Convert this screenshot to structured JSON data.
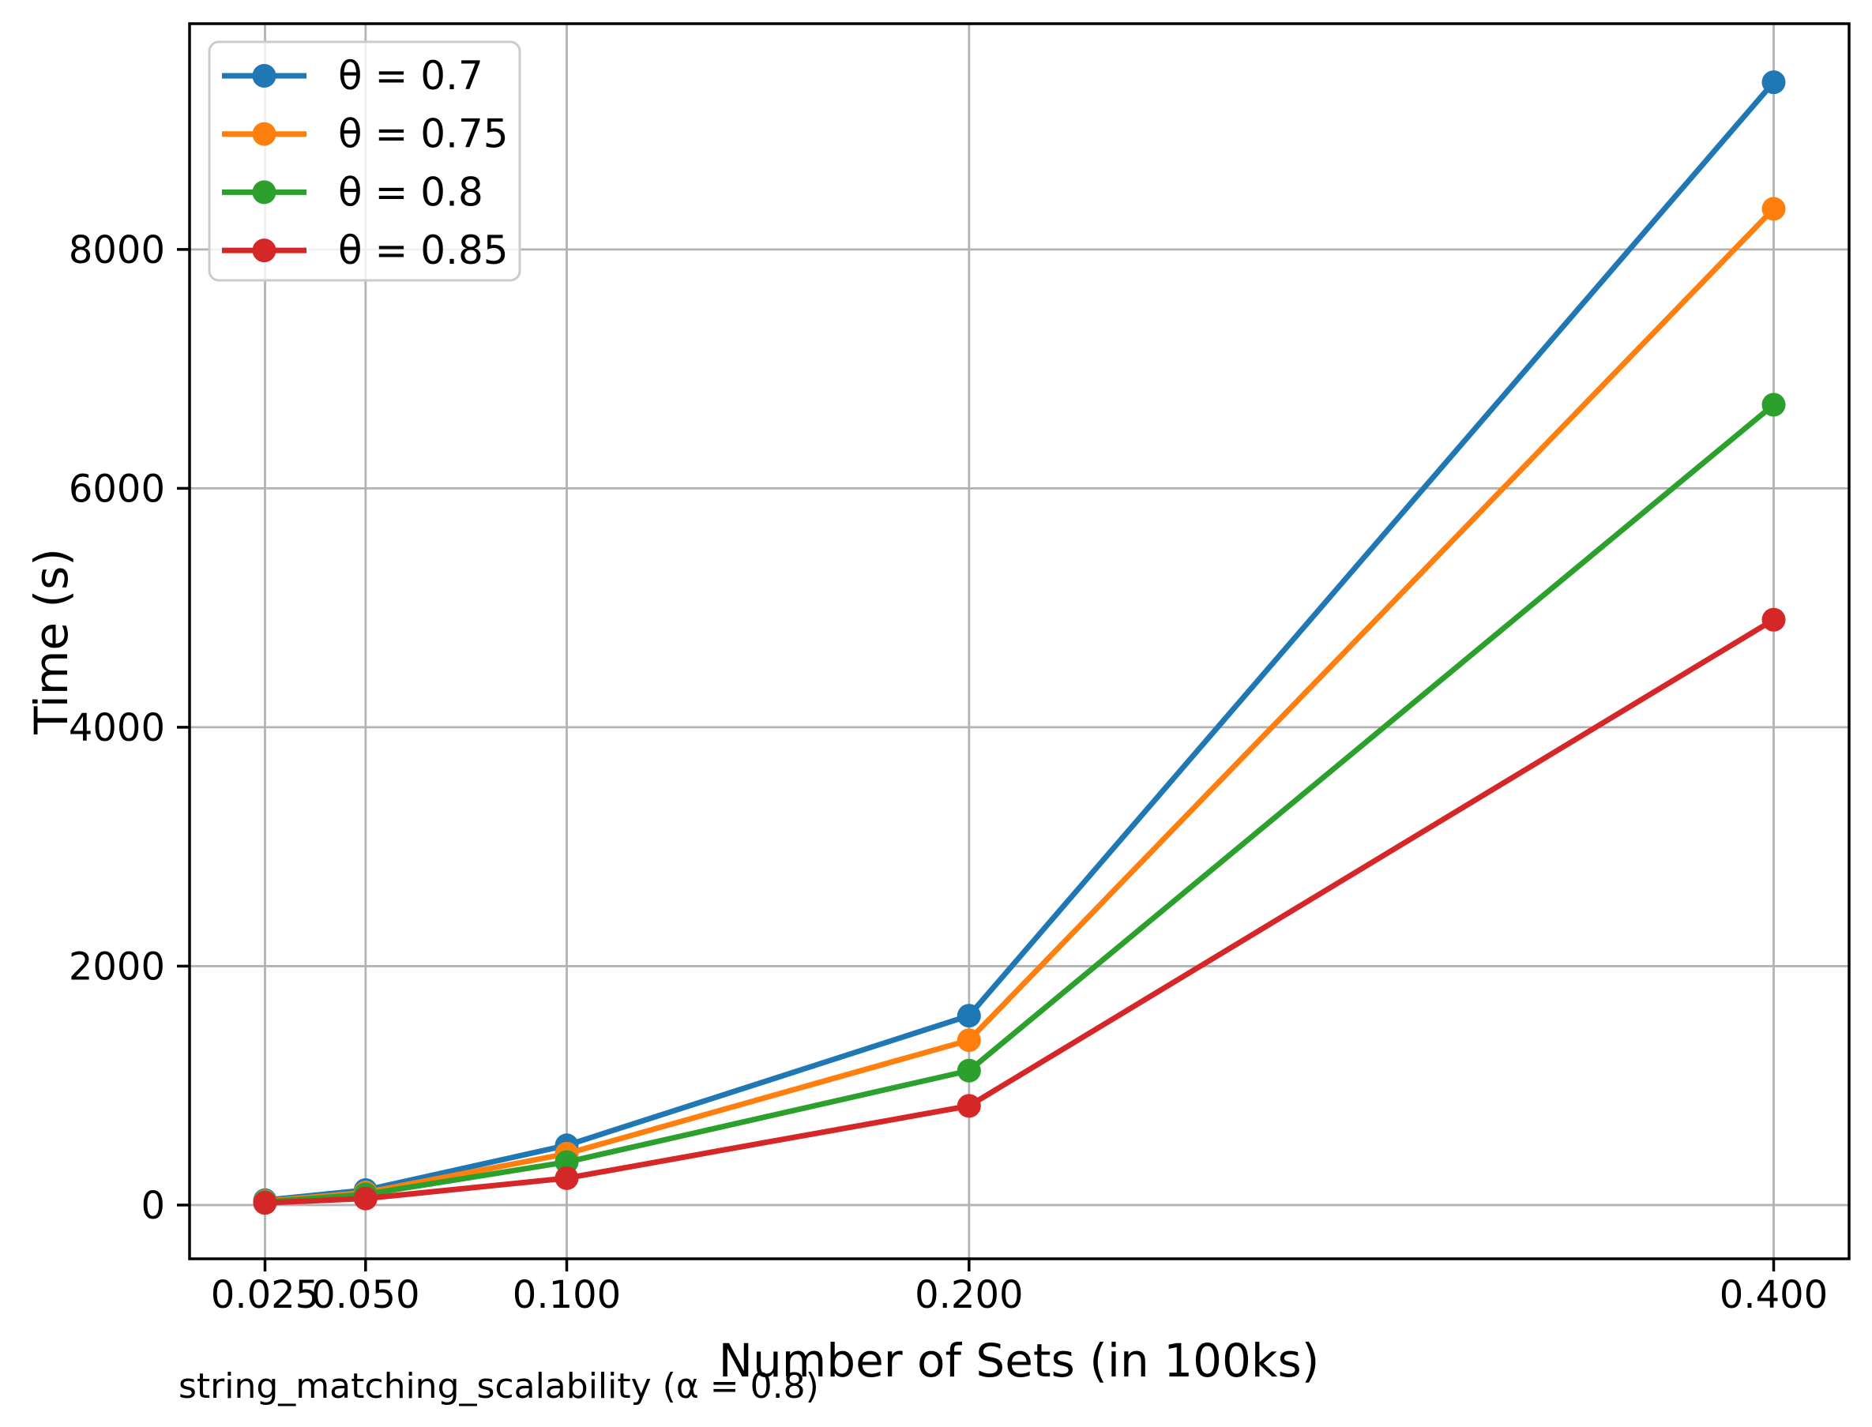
{
  "figure": {
    "background": "#ffffff",
    "caption": "string_matching_scalability (α = 0.8)",
    "colors": {
      "grid": "#b3b3b3",
      "axis": "#000000",
      "legend_border": "#cccccc"
    }
  },
  "chart_data": {
    "type": "line",
    "title": "",
    "xlabel": "Number of Sets (in 100ks)",
    "ylabel": "Time (s)",
    "x": [
      0.025,
      0.05,
      0.1,
      0.2,
      0.4
    ],
    "xtick_labels": [
      "0.025",
      "0.050",
      "0.100",
      "0.200",
      "0.400"
    ],
    "yticks": [
      0,
      2000,
      4000,
      6000,
      8000
    ],
    "ytick_labels": [
      "0",
      "2000",
      "4000",
      "6000",
      "8000"
    ],
    "xlim": [
      0.00625,
      0.41875
    ],
    "ylim": [
      -450,
      9890
    ],
    "grid": true,
    "legend_position": "upper left",
    "marker": "circle",
    "series": [
      {
        "name": "θ = 0.7",
        "color": "#1f77b4",
        "values": [
          40,
          125,
          500,
          1585,
          9400
        ]
      },
      {
        "name": "θ = 0.75",
        "color": "#ff7f0e",
        "values": [
          32,
          105,
          430,
          1380,
          8340
        ]
      },
      {
        "name": "θ = 0.8",
        "color": "#2ca02c",
        "values": [
          25,
          90,
          360,
          1125,
          6700
        ]
      },
      {
        "name": "θ = 0.85",
        "color": "#d62728",
        "values": [
          18,
          55,
          225,
          830,
          4900
        ]
      }
    ]
  }
}
